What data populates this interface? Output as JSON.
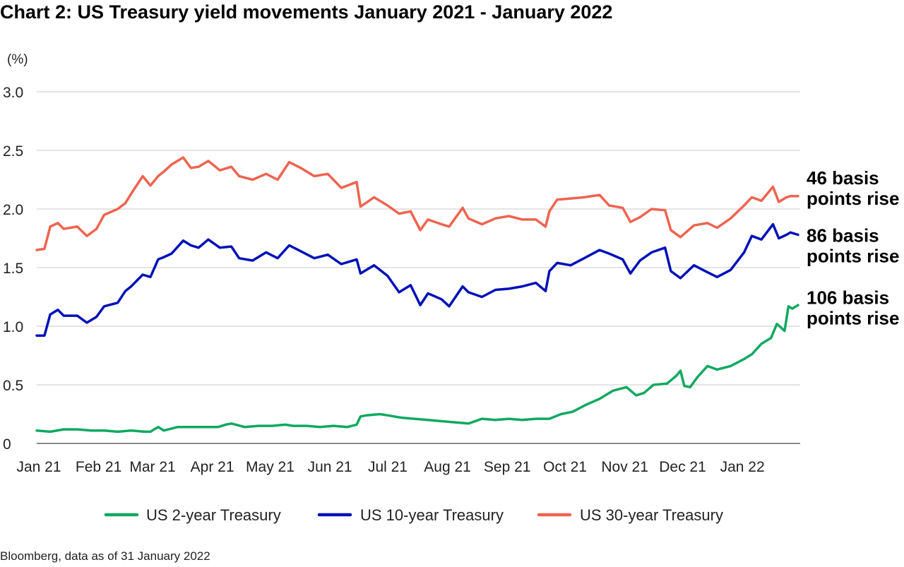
{
  "chart_data": {
    "type": "line",
    "title": "Chart 2: US Treasury yield movements January 2021 - January 2022",
    "ylabel": "(%)",
    "ylim": [
      0,
      3.0
    ],
    "y_ticks": [
      "3.0",
      "2.5",
      "2.0",
      "1.5",
      "1.0",
      "0.5",
      "0"
    ],
    "grid": true,
    "legend_position": "bottom",
    "x_ticks": [
      "Jan 21",
      "Feb 21",
      "Mar 21",
      "Apr 21",
      "May 21",
      "Jun 21",
      "Jul 21",
      "Aug 21",
      "Sep 21",
      "Oct 21",
      "Nov 21",
      "Dec 21",
      "Jan 22"
    ],
    "x_range": [
      "2021-01-01",
      "2022-01-31"
    ],
    "series": [
      {
        "name": "US 2-year Treasury",
        "color": "#10a860",
        "points": [
          [
            "2021-01-01",
            0.11
          ],
          [
            "2021-01-08",
            0.1
          ],
          [
            "2021-01-15",
            0.12
          ],
          [
            "2021-01-22",
            0.12
          ],
          [
            "2021-01-29",
            0.11
          ],
          [
            "2021-02-05",
            0.11
          ],
          [
            "2021-02-12",
            0.1
          ],
          [
            "2021-02-19",
            0.11
          ],
          [
            "2021-02-26",
            0.1
          ],
          [
            "2021-03-01",
            0.1
          ],
          [
            "2021-03-05",
            0.14
          ],
          [
            "2021-03-08",
            0.11
          ],
          [
            "2021-03-15",
            0.14
          ],
          [
            "2021-03-22",
            0.14
          ],
          [
            "2021-03-29",
            0.14
          ],
          [
            "2021-04-05",
            0.14
          ],
          [
            "2021-04-09",
            0.16
          ],
          [
            "2021-04-12",
            0.17
          ],
          [
            "2021-04-19",
            0.14
          ],
          [
            "2021-04-26",
            0.15
          ],
          [
            "2021-05-03",
            0.15
          ],
          [
            "2021-05-10",
            0.16
          ],
          [
            "2021-05-14",
            0.15
          ],
          [
            "2021-05-21",
            0.15
          ],
          [
            "2021-05-28",
            0.14
          ],
          [
            "2021-06-04",
            0.15
          ],
          [
            "2021-06-11",
            0.14
          ],
          [
            "2021-06-16",
            0.16
          ],
          [
            "2021-06-18",
            0.23
          ],
          [
            "2021-06-21",
            0.24
          ],
          [
            "2021-06-28",
            0.25
          ],
          [
            "2021-07-02",
            0.24
          ],
          [
            "2021-07-09",
            0.22
          ],
          [
            "2021-07-16",
            0.21
          ],
          [
            "2021-07-23",
            0.2
          ],
          [
            "2021-07-30",
            0.19
          ],
          [
            "2021-08-06",
            0.18
          ],
          [
            "2021-08-13",
            0.17
          ],
          [
            "2021-08-20",
            0.21
          ],
          [
            "2021-08-27",
            0.2
          ],
          [
            "2021-09-03",
            0.21
          ],
          [
            "2021-09-10",
            0.2
          ],
          [
            "2021-09-17",
            0.21
          ],
          [
            "2021-09-24",
            0.21
          ],
          [
            "2021-09-30",
            0.25
          ],
          [
            "2021-10-06",
            0.27
          ],
          [
            "2021-10-13",
            0.33
          ],
          [
            "2021-10-20",
            0.38
          ],
          [
            "2021-10-27",
            0.45
          ],
          [
            "2021-11-03",
            0.48
          ],
          [
            "2021-11-08",
            0.41
          ],
          [
            "2021-11-12",
            0.43
          ],
          [
            "2021-11-17",
            0.5
          ],
          [
            "2021-11-24",
            0.51
          ],
          [
            "2021-11-29",
            0.58
          ],
          [
            "2021-12-01",
            0.62
          ],
          [
            "2021-12-03",
            0.49
          ],
          [
            "2021-12-06",
            0.48
          ],
          [
            "2021-12-10",
            0.57
          ],
          [
            "2021-12-15",
            0.66
          ],
          [
            "2021-12-20",
            0.63
          ],
          [
            "2021-12-27",
            0.66
          ],
          [
            "2022-01-03",
            0.72
          ],
          [
            "2022-01-07",
            0.76
          ],
          [
            "2022-01-12",
            0.85
          ],
          [
            "2022-01-17",
            0.9
          ],
          [
            "2022-01-20",
            1.02
          ],
          [
            "2022-01-24",
            0.96
          ],
          [
            "2022-01-26",
            1.17
          ],
          [
            "2022-01-28",
            1.15
          ],
          [
            "2022-01-31",
            1.18
          ]
        ]
      },
      {
        "name": "US 10-year Treasury",
        "color": "#0010b8",
        "points": [
          [
            "2021-01-01",
            0.92
          ],
          [
            "2021-01-05",
            0.92
          ],
          [
            "2021-01-08",
            1.1
          ],
          [
            "2021-01-12",
            1.14
          ],
          [
            "2021-01-15",
            1.09
          ],
          [
            "2021-01-22",
            1.09
          ],
          [
            "2021-01-27",
            1.03
          ],
          [
            "2021-02-01",
            1.08
          ],
          [
            "2021-02-05",
            1.17
          ],
          [
            "2021-02-12",
            1.2
          ],
          [
            "2021-02-16",
            1.3
          ],
          [
            "2021-02-19",
            1.34
          ],
          [
            "2021-02-25",
            1.44
          ],
          [
            "2021-03-01",
            1.42
          ],
          [
            "2021-03-05",
            1.57
          ],
          [
            "2021-03-08",
            1.59
          ],
          [
            "2021-03-12",
            1.62
          ],
          [
            "2021-03-18",
            1.73
          ],
          [
            "2021-03-22",
            1.69
          ],
          [
            "2021-03-26",
            1.67
          ],
          [
            "2021-03-31",
            1.74
          ],
          [
            "2021-04-06",
            1.67
          ],
          [
            "2021-04-12",
            1.68
          ],
          [
            "2021-04-16",
            1.58
          ],
          [
            "2021-04-23",
            1.56
          ],
          [
            "2021-04-30",
            1.63
          ],
          [
            "2021-05-06",
            1.58
          ],
          [
            "2021-05-12",
            1.69
          ],
          [
            "2021-05-18",
            1.64
          ],
          [
            "2021-05-25",
            1.58
          ],
          [
            "2021-06-01",
            1.61
          ],
          [
            "2021-06-08",
            1.53
          ],
          [
            "2021-06-16",
            1.57
          ],
          [
            "2021-06-18",
            1.45
          ],
          [
            "2021-06-25",
            1.52
          ],
          [
            "2021-07-02",
            1.43
          ],
          [
            "2021-07-08",
            1.29
          ],
          [
            "2021-07-14",
            1.35
          ],
          [
            "2021-07-19",
            1.18
          ],
          [
            "2021-07-23",
            1.28
          ],
          [
            "2021-07-30",
            1.23
          ],
          [
            "2021-08-03",
            1.17
          ],
          [
            "2021-08-10",
            1.34
          ],
          [
            "2021-08-13",
            1.29
          ],
          [
            "2021-08-20",
            1.25
          ],
          [
            "2021-08-27",
            1.31
          ],
          [
            "2021-09-03",
            1.32
          ],
          [
            "2021-09-10",
            1.34
          ],
          [
            "2021-09-17",
            1.37
          ],
          [
            "2021-09-22",
            1.3
          ],
          [
            "2021-09-24",
            1.47
          ],
          [
            "2021-09-28",
            1.54
          ],
          [
            "2021-10-05",
            1.52
          ],
          [
            "2021-10-12",
            1.58
          ],
          [
            "2021-10-20",
            1.65
          ],
          [
            "2021-10-25",
            1.62
          ],
          [
            "2021-11-01",
            1.57
          ],
          [
            "2021-11-05",
            1.45
          ],
          [
            "2021-11-10",
            1.56
          ],
          [
            "2021-11-16",
            1.63
          ],
          [
            "2021-11-23",
            1.67
          ],
          [
            "2021-11-26",
            1.47
          ],
          [
            "2021-12-01",
            1.41
          ],
          [
            "2021-12-08",
            1.52
          ],
          [
            "2021-12-15",
            1.46
          ],
          [
            "2021-12-20",
            1.42
          ],
          [
            "2021-12-27",
            1.48
          ],
          [
            "2022-01-03",
            1.63
          ],
          [
            "2022-01-07",
            1.77
          ],
          [
            "2022-01-12",
            1.74
          ],
          [
            "2022-01-18",
            1.87
          ],
          [
            "2022-01-21",
            1.75
          ],
          [
            "2022-01-25",
            1.78
          ],
          [
            "2022-01-27",
            1.8
          ],
          [
            "2022-01-31",
            1.78
          ]
        ]
      },
      {
        "name": "US 30-year Treasury",
        "color": "#ee6450",
        "points": [
          [
            "2021-01-01",
            1.65
          ],
          [
            "2021-01-05",
            1.66
          ],
          [
            "2021-01-08",
            1.85
          ],
          [
            "2021-01-12",
            1.88
          ],
          [
            "2021-01-15",
            1.83
          ],
          [
            "2021-01-22",
            1.85
          ],
          [
            "2021-01-27",
            1.77
          ],
          [
            "2021-02-01",
            1.83
          ],
          [
            "2021-02-05",
            1.95
          ],
          [
            "2021-02-12",
            2.0
          ],
          [
            "2021-02-16",
            2.05
          ],
          [
            "2021-02-19",
            2.13
          ],
          [
            "2021-02-25",
            2.28
          ],
          [
            "2021-03-01",
            2.2
          ],
          [
            "2021-03-05",
            2.28
          ],
          [
            "2021-03-08",
            2.32
          ],
          [
            "2021-03-12",
            2.38
          ],
          [
            "2021-03-18",
            2.44
          ],
          [
            "2021-03-22",
            2.35
          ],
          [
            "2021-03-26",
            2.36
          ],
          [
            "2021-03-31",
            2.41
          ],
          [
            "2021-04-06",
            2.33
          ],
          [
            "2021-04-12",
            2.36
          ],
          [
            "2021-04-16",
            2.28
          ],
          [
            "2021-04-23",
            2.25
          ],
          [
            "2021-04-30",
            2.3
          ],
          [
            "2021-05-06",
            2.25
          ],
          [
            "2021-05-12",
            2.4
          ],
          [
            "2021-05-18",
            2.35
          ],
          [
            "2021-05-25",
            2.28
          ],
          [
            "2021-06-01",
            2.3
          ],
          [
            "2021-06-08",
            2.18
          ],
          [
            "2021-06-16",
            2.23
          ],
          [
            "2021-06-18",
            2.02
          ],
          [
            "2021-06-25",
            2.1
          ],
          [
            "2021-07-02",
            2.03
          ],
          [
            "2021-07-08",
            1.96
          ],
          [
            "2021-07-14",
            1.98
          ],
          [
            "2021-07-19",
            1.82
          ],
          [
            "2021-07-23",
            1.91
          ],
          [
            "2021-07-30",
            1.87
          ],
          [
            "2021-08-03",
            1.85
          ],
          [
            "2021-08-10",
            2.01
          ],
          [
            "2021-08-13",
            1.92
          ],
          [
            "2021-08-20",
            1.87
          ],
          [
            "2021-08-27",
            1.92
          ],
          [
            "2021-09-03",
            1.94
          ],
          [
            "2021-09-10",
            1.91
          ],
          [
            "2021-09-17",
            1.91
          ],
          [
            "2021-09-22",
            1.85
          ],
          [
            "2021-09-24",
            1.98
          ],
          [
            "2021-09-28",
            2.08
          ],
          [
            "2021-10-05",
            2.09
          ],
          [
            "2021-10-12",
            2.1
          ],
          [
            "2021-10-20",
            2.12
          ],
          [
            "2021-10-25",
            2.03
          ],
          [
            "2021-11-01",
            2.01
          ],
          [
            "2021-11-05",
            1.89
          ],
          [
            "2021-11-10",
            1.93
          ],
          [
            "2021-11-16",
            2.0
          ],
          [
            "2021-11-23",
            1.99
          ],
          [
            "2021-11-26",
            1.82
          ],
          [
            "2021-12-01",
            1.76
          ],
          [
            "2021-12-08",
            1.86
          ],
          [
            "2021-12-15",
            1.88
          ],
          [
            "2021-12-20",
            1.84
          ],
          [
            "2021-12-27",
            1.92
          ],
          [
            "2022-01-03",
            2.03
          ],
          [
            "2022-01-07",
            2.1
          ],
          [
            "2022-01-12",
            2.07
          ],
          [
            "2022-01-18",
            2.19
          ],
          [
            "2022-01-21",
            2.06
          ],
          [
            "2022-01-25",
            2.1
          ],
          [
            "2022-01-27",
            2.11
          ],
          [
            "2022-01-31",
            2.11
          ]
        ]
      }
    ],
    "annotations": [
      {
        "lines": [
          "46 basis",
          "points rise"
        ],
        "series": "US 30-year Treasury"
      },
      {
        "lines": [
          "86 basis",
          "points rise"
        ],
        "series": "US 10-year Treasury"
      },
      {
        "lines": [
          "106 basis",
          "points rise"
        ],
        "series": "US 2-year Treasury"
      }
    ]
  },
  "source": "Bloomberg, data as of 31 January 2022"
}
